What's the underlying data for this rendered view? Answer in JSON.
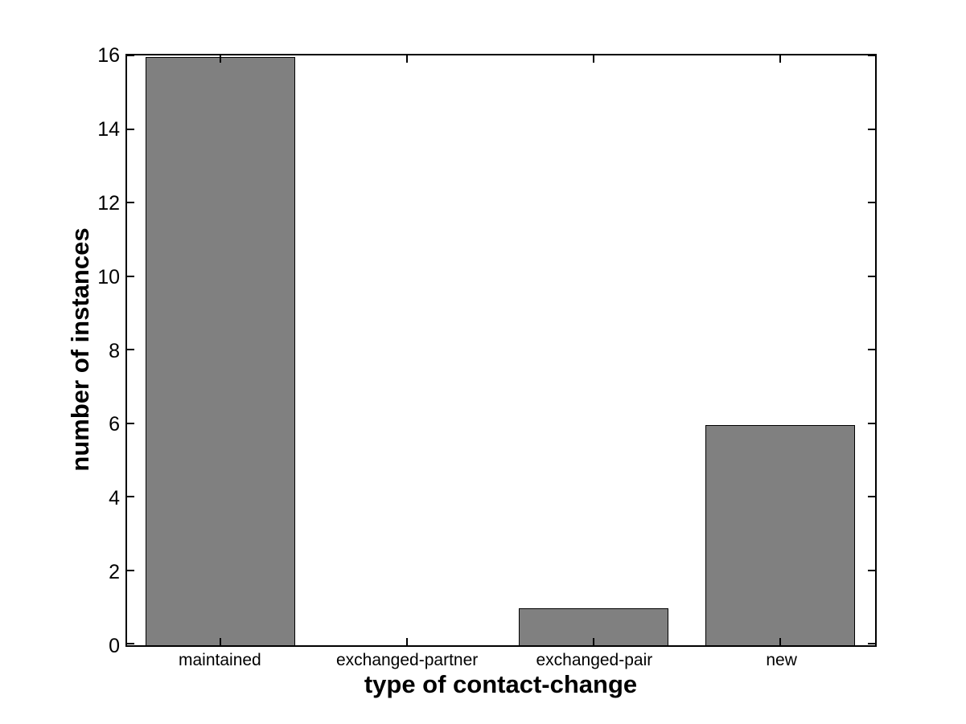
{
  "figure": {
    "background": "#ffffff",
    "axis_color": "#000000"
  },
  "chart_data": {
    "type": "bar",
    "categories": [
      "maintained",
      "exchanged-partner",
      "exchanged-pair",
      "new"
    ],
    "values": [
      16,
      0,
      1,
      6
    ],
    "title": "",
    "xlabel": "type of contact-change",
    "ylabel": "number of instances",
    "ylim": [
      0,
      16
    ],
    "yticks": [
      0,
      2,
      4,
      6,
      8,
      10,
      12,
      14,
      16
    ],
    "ytick_labels": [
      "0",
      "2",
      "4",
      "6",
      "8",
      "10",
      "12",
      "14",
      "16"
    ],
    "bar_color": "#808080",
    "bar_edge_color": "#000000",
    "bar_width_fraction": 0.8,
    "grid": false,
    "legend": "none",
    "box": true,
    "tick_direction": "in"
  }
}
